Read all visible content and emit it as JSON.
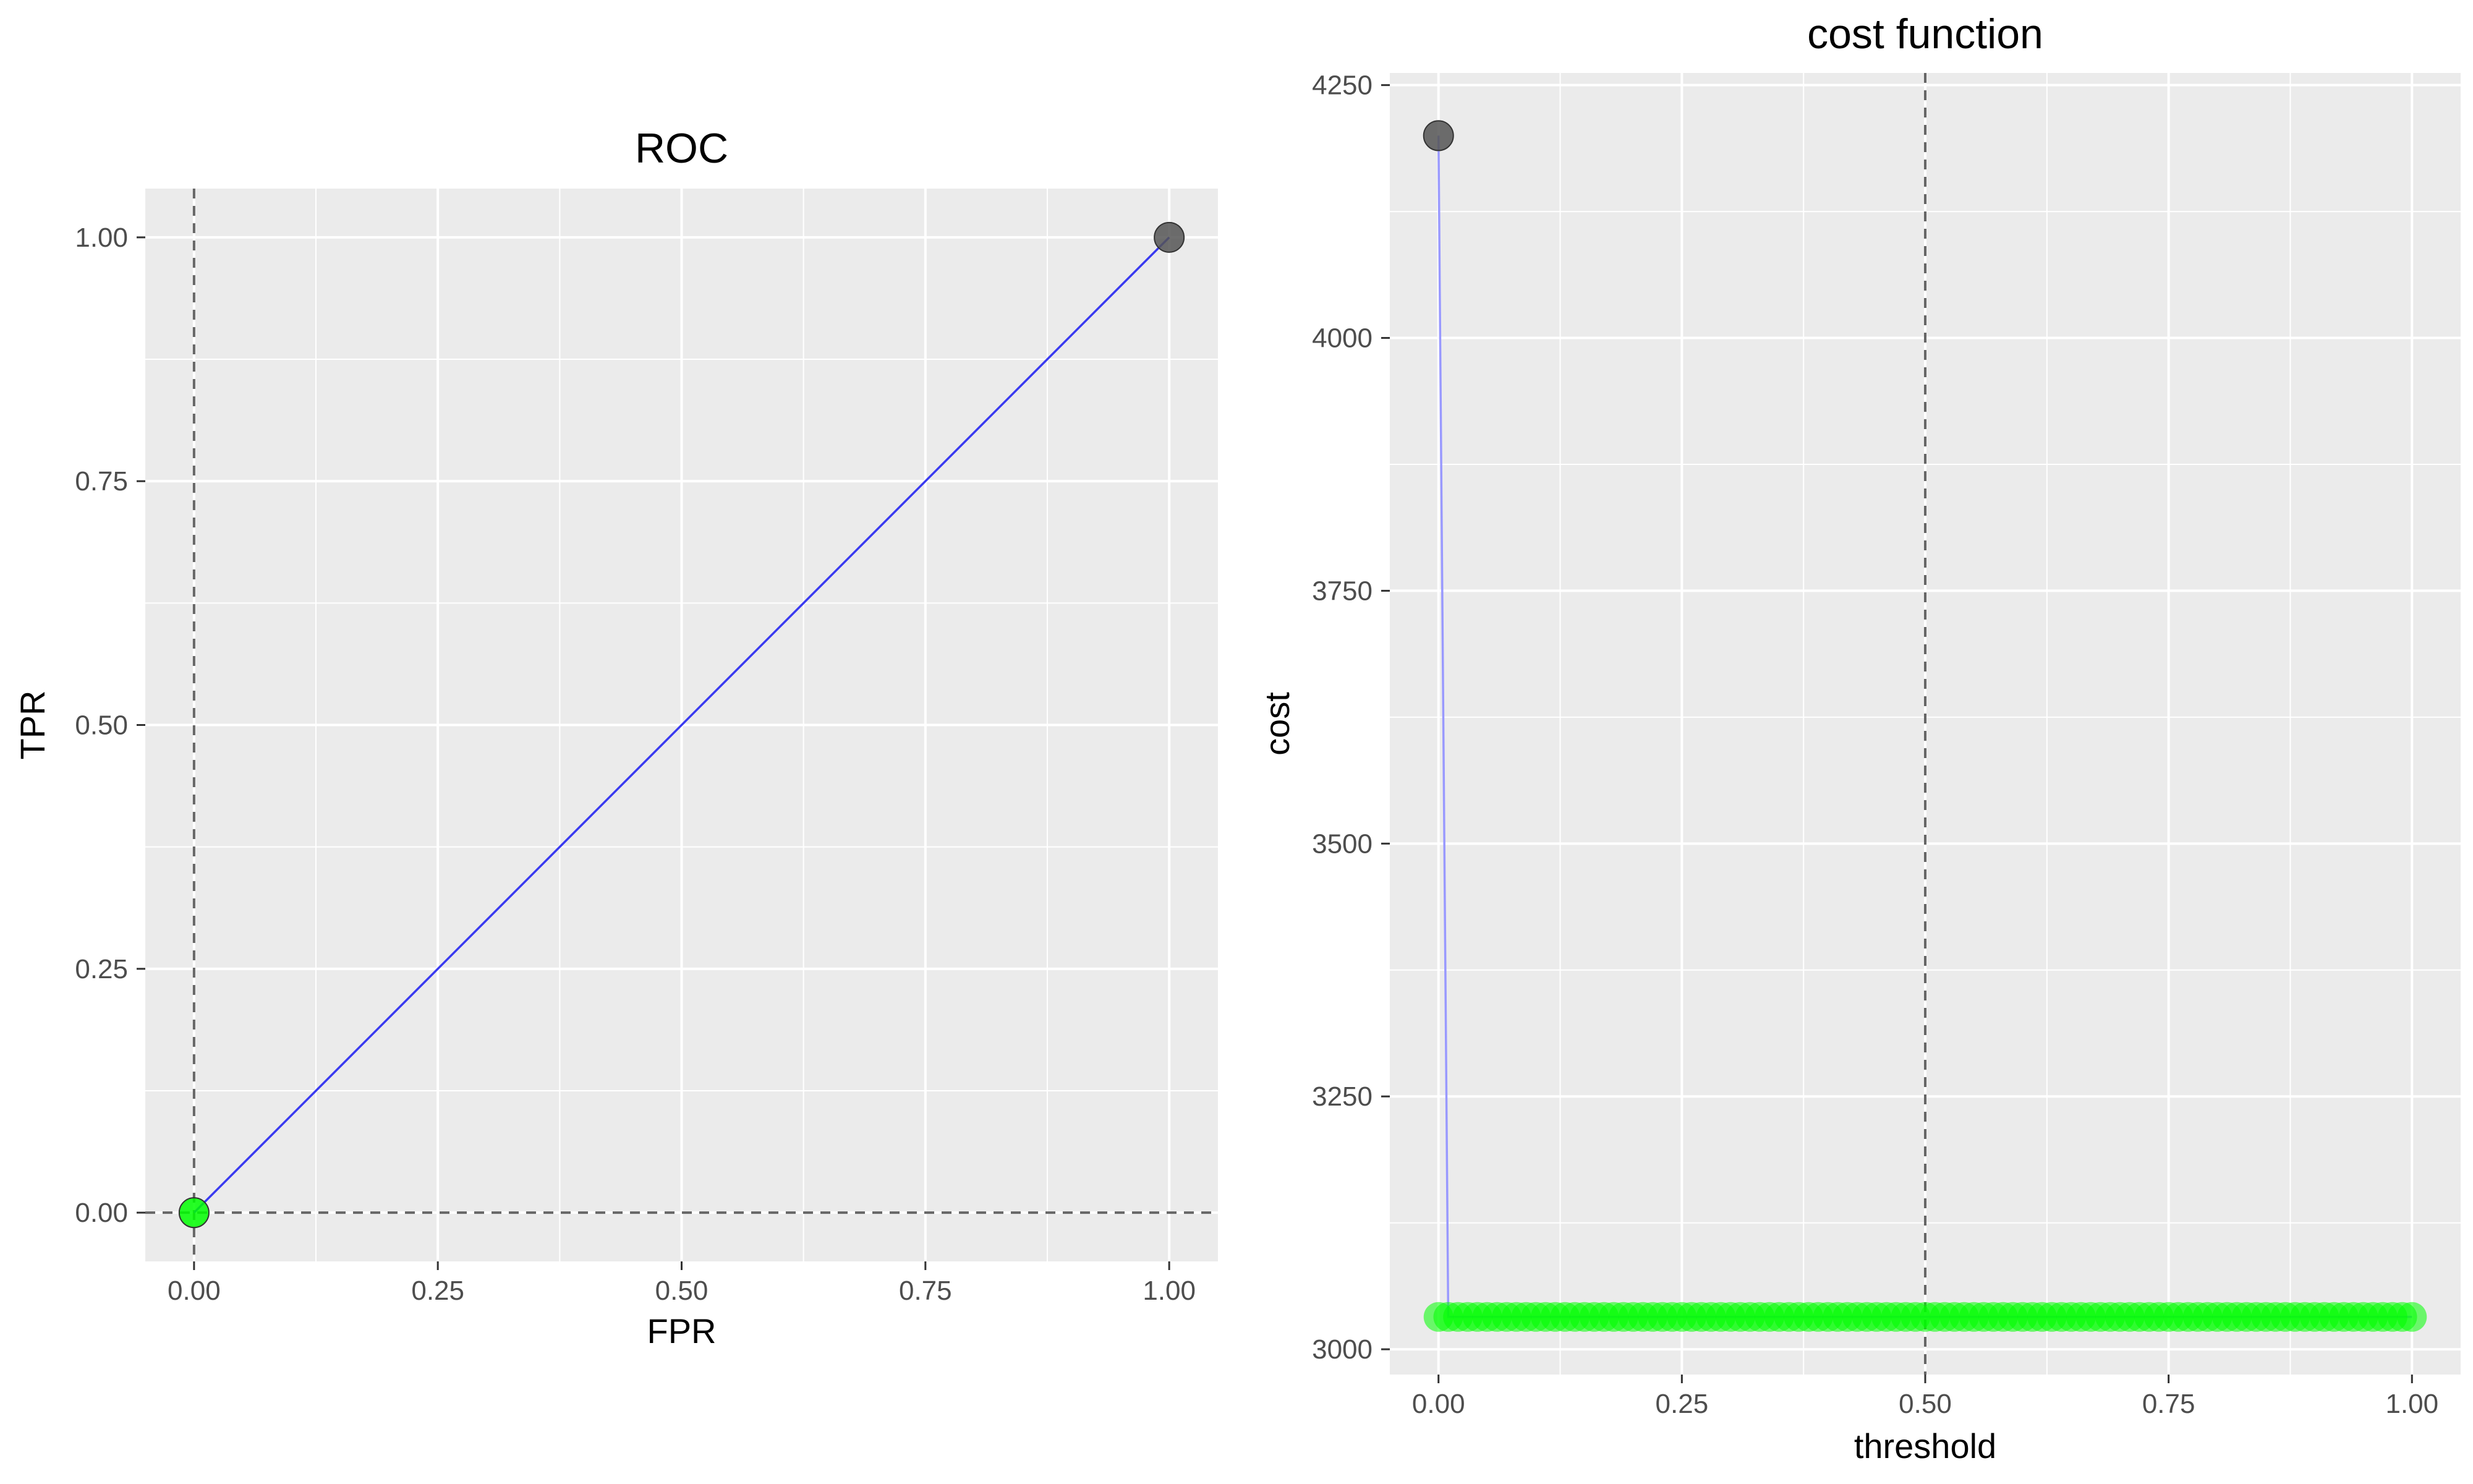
{
  "chart_data": [
    {
      "type": "line",
      "title": "ROC",
      "xlabel": "FPR",
      "ylabel": "TPR",
      "xlim": [
        -0.05,
        1.05
      ],
      "ylim": [
        -0.05,
        1.05
      ],
      "xticks": [
        0,
        0.25,
        0.5,
        0.75,
        1
      ],
      "xtick_labels": [
        "0.00",
        "0.25",
        "0.50",
        "0.75",
        "1.00"
      ],
      "yticks": [
        0,
        0.25,
        0.5,
        0.75,
        1
      ],
      "ytick_labels": [
        "0.00",
        "0.25",
        "0.50",
        "0.75",
        "1.00"
      ],
      "grid": true,
      "series": [
        {
          "x": [
            0,
            1
          ],
          "y": [
            0,
            1
          ],
          "color": "#3a3af0"
        }
      ],
      "points": [
        {
          "x": 1,
          "y": 1,
          "color": "#555555"
        },
        {
          "x": 0,
          "y": 0,
          "color": "#00ff00"
        }
      ],
      "reference_lines": {
        "vertical_x": 0,
        "horizontal_y": 0
      }
    },
    {
      "type": "line",
      "title": "cost function",
      "xlabel": "threshold",
      "ylabel": "cost",
      "xlim": [
        -0.05,
        1.05
      ],
      "ylim": [
        2975,
        4262
      ],
      "xticks": [
        0,
        0.25,
        0.5,
        0.75,
        1
      ],
      "xtick_labels": [
        "0.00",
        "0.25",
        "0.50",
        "0.75",
        "1.00"
      ],
      "yticks": [
        3000,
        3250,
        3500,
        3750,
        4000,
        4250
      ],
      "ytick_labels": [
        "3000",
        "3250",
        "3500",
        "3750",
        "4000",
        "4250"
      ],
      "grid": true,
      "series": [
        {
          "x": [
            0,
            0.01,
            1
          ],
          "y": [
            4200,
            3032,
            3032
          ],
          "color": "#9999ff"
        }
      ],
      "points": [
        {
          "x": 0,
          "y": 4200,
          "color": "#555555"
        }
      ],
      "flat_points": {
        "x_start": 0,
        "x_end": 1,
        "count": 101,
        "y": 3032,
        "color": "#00ff00"
      },
      "reference_lines": {
        "vertical_x": 0.5
      }
    }
  ]
}
